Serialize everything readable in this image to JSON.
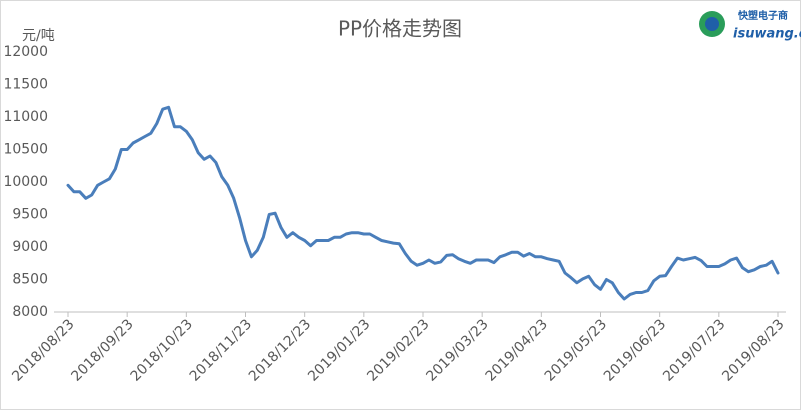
{
  "logo": {
    "name": "快塑电子商",
    "site": "isuwang.co"
  },
  "chart_data": {
    "type": "line",
    "title": "PP价格走势图",
    "y_label": "元/吨",
    "categories": [
      "2018/08/23",
      null,
      null,
      null,
      null,
      null,
      null,
      null,
      null,
      null,
      "2018/09/23",
      null,
      null,
      null,
      null,
      null,
      null,
      null,
      null,
      null,
      "2018/10/23",
      null,
      null,
      null,
      null,
      null,
      null,
      null,
      null,
      null,
      "2018/11/23",
      null,
      null,
      null,
      null,
      null,
      null,
      null,
      null,
      null,
      "2018/12/23",
      null,
      null,
      null,
      null,
      null,
      null,
      null,
      null,
      null,
      "2019/01/23",
      null,
      null,
      null,
      null,
      null,
      null,
      null,
      null,
      null,
      "2019/02/23",
      null,
      null,
      null,
      null,
      null,
      null,
      null,
      null,
      null,
      "2019/03/23",
      null,
      null,
      null,
      null,
      null,
      null,
      null,
      null,
      null,
      "2019/04/23",
      null,
      null,
      null,
      null,
      null,
      null,
      null,
      null,
      null,
      "2019/05/23",
      null,
      null,
      null,
      null,
      null,
      null,
      null,
      null,
      null,
      "2019/06/23",
      null,
      null,
      null,
      null,
      null,
      null,
      null,
      null,
      null,
      "2019/07/23",
      null,
      null,
      null,
      null,
      null,
      null,
      null,
      null,
      null,
      "2019/08/23"
    ],
    "series": [
      {
        "name": "PP",
        "color": "#4a7ebb",
        "values": [
          9950,
          9850,
          9850,
          9750,
          9800,
          9950,
          10000,
          10050,
          10200,
          10500,
          10500,
          10600,
          10650,
          10700,
          10750,
          10900,
          11120,
          11150,
          10850,
          10850,
          10780,
          10650,
          10450,
          10350,
          10400,
          10300,
          10080,
          9950,
          9750,
          9450,
          9100,
          8850,
          8950,
          9150,
          9500,
          9520,
          9300,
          9150,
          9220,
          9150,
          9100,
          9020,
          9100,
          9100,
          9100,
          9150,
          9150,
          9200,
          9220,
          9220,
          9200,
          9200,
          9150,
          9100,
          9080,
          9060,
          9050,
          8900,
          8780,
          8720,
          8750,
          8800,
          8750,
          8770,
          8870,
          8880,
          8820,
          8780,
          8750,
          8800,
          8800,
          8800,
          8760,
          8850,
          8880,
          8920,
          8920,
          8860,
          8900,
          8850,
          8850,
          8820,
          8800,
          8780,
          8600,
          8530,
          8450,
          8510,
          8550,
          8420,
          8350,
          8500,
          8450,
          8300,
          8200,
          8270,
          8300,
          8300,
          8330,
          8480,
          8550,
          8560,
          8700,
          8830,
          8800,
          8820,
          8840,
          8790,
          8700,
          8700,
          8700,
          8740,
          8800,
          8830,
          8680,
          8620,
          8650,
          8700,
          8720,
          8780,
          8600
        ]
      }
    ],
    "ylim": [
      8000,
      12000
    ],
    "yticks": [
      8000,
      8500,
      9000,
      9500,
      10000,
      10500,
      11000,
      11500,
      12000
    ],
    "grid": false
  }
}
